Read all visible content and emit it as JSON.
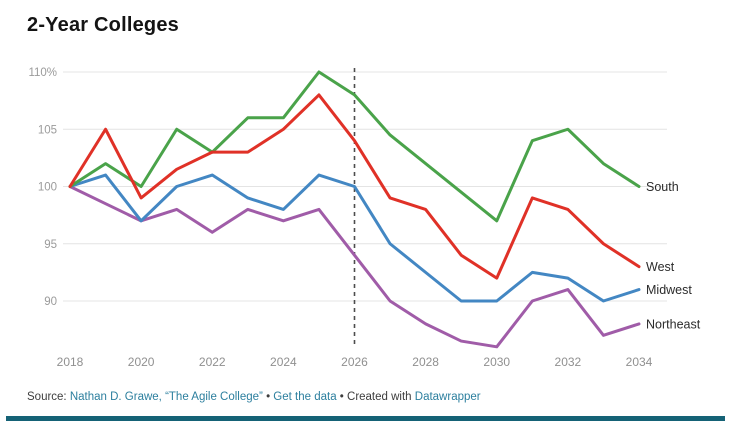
{
  "header": {
    "title": "2-Year Colleges"
  },
  "chart_data": {
    "type": "line",
    "title": "2-Year Colleges",
    "x": [
      2018,
      2019,
      2020,
      2021,
      2022,
      2023,
      2024,
      2025,
      2026,
      2027,
      2028,
      2029,
      2030,
      2031,
      2032,
      2033,
      2034
    ],
    "x_tick_labels": [
      "2018",
      "2020",
      "2022",
      "2024",
      "2026",
      "2028",
      "2030",
      "2032",
      "2034"
    ],
    "y_ticks": [
      110,
      105,
      100,
      95,
      90
    ],
    "y_tick_labels": [
      "110%",
      "105",
      "100",
      "95",
      "90"
    ],
    "ylim": [
      84,
      111
    ],
    "grid": "horizontal-only",
    "legend_position": "end-of-line-labels",
    "annotation": {
      "type": "vertical-dashed-line",
      "x": 2026
    },
    "series": [
      {
        "name": "South",
        "color": "#4aa34a",
        "values": [
          100,
          102,
          100,
          105,
          103,
          106,
          106,
          110,
          108,
          104.5,
          102,
          99.5,
          97,
          104,
          105,
          102,
          100
        ]
      },
      {
        "name": "West",
        "color": "#e03127",
        "values": [
          100,
          105,
          99,
          101.5,
          103,
          103,
          105,
          108,
          104,
          99,
          98,
          94,
          92,
          99,
          98,
          95,
          93
        ]
      },
      {
        "name": "Midwest",
        "color": "#4387c3",
        "values": [
          100,
          101,
          97,
          100,
          101,
          99,
          98,
          101,
          100,
          95,
          92.5,
          90,
          90,
          92.5,
          92,
          90,
          91
        ]
      },
      {
        "name": "Northeast",
        "color": "#a05ca8",
        "values": [
          100,
          98.5,
          97,
          98,
          96,
          98,
          97,
          98,
          94,
          90,
          88,
          86.5,
          86,
          90,
          91,
          87,
          88
        ]
      }
    ]
  },
  "styles": {
    "gridline_color": "#e4e4e4",
    "tick_label_color": "#9b9b9b",
    "x_label_color": "#909090",
    "series_label_color": "#2b2b2b",
    "dashed_line_color": "#4d4d4d",
    "bottom_bar_color": "#156276"
  },
  "footer": {
    "source_label": "Source: ",
    "source_link": "Nathan D. Grawe, “The Agile College”",
    "sep1": " • ",
    "get_data_link": "Get the data",
    "created_with": " • Created with ",
    "datawrapper_link": "Datawrapper"
  }
}
